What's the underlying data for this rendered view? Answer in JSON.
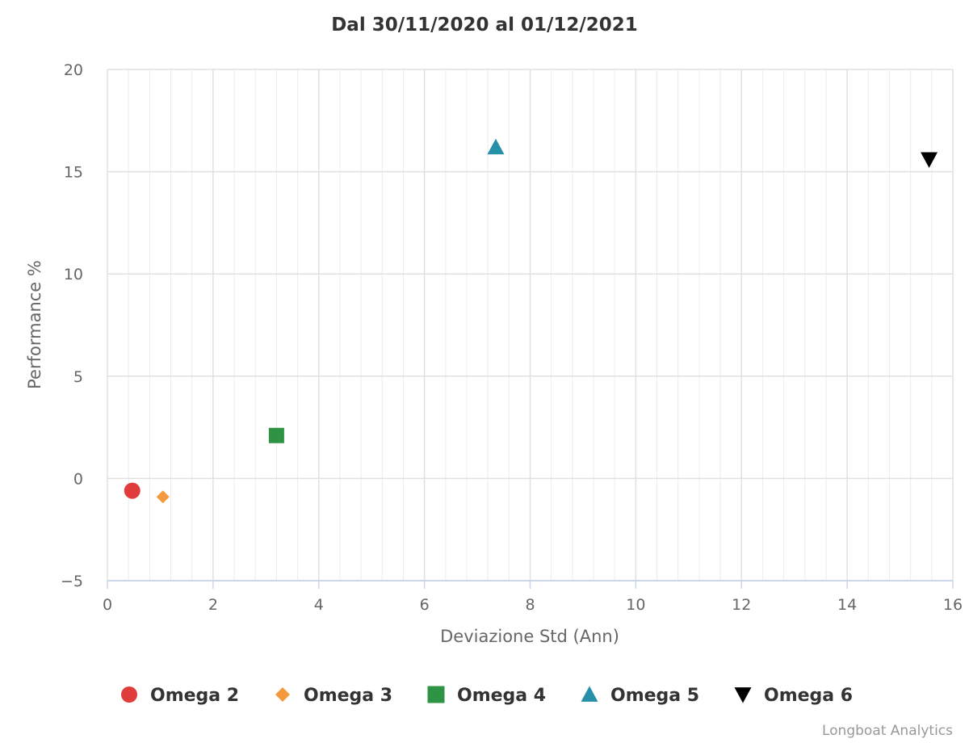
{
  "chart_data": {
    "type": "scatter",
    "title": "Dal 30/11/2020 al 01/12/2021",
    "xlabel": "Deviazione Std (Ann)",
    "ylabel": "Performance %",
    "xlim": [
      0,
      16
    ],
    "ylim": [
      -5,
      20
    ],
    "xticks": [
      0,
      2,
      4,
      6,
      8,
      10,
      12,
      14,
      16
    ],
    "yticks": [
      -5,
      0,
      5,
      10,
      15,
      20
    ],
    "x_minor_step": 0.4,
    "grid": true,
    "legend_position": "bottom",
    "series": [
      {
        "name": "Omega 2",
        "marker": "circle",
        "color": "#e03c3c",
        "points": [
          {
            "x": 0.47,
            "y": -0.6
          }
        ]
      },
      {
        "name": "Omega 3",
        "marker": "diamond",
        "color": "#f59a3c",
        "points": [
          {
            "x": 1.05,
            "y": -0.9
          }
        ]
      },
      {
        "name": "Omega 4",
        "marker": "square",
        "color": "#2e9444",
        "points": [
          {
            "x": 3.2,
            "y": 2.1
          }
        ]
      },
      {
        "name": "Omega 5",
        "marker": "triangle-up",
        "color": "#2690a8",
        "points": [
          {
            "x": 7.35,
            "y": 16.2
          }
        ]
      },
      {
        "name": "Omega 6",
        "marker": "triangle-down",
        "color": "#000000",
        "points": [
          {
            "x": 15.55,
            "y": 15.6
          }
        ]
      }
    ]
  },
  "credit": "Longboat Analytics"
}
